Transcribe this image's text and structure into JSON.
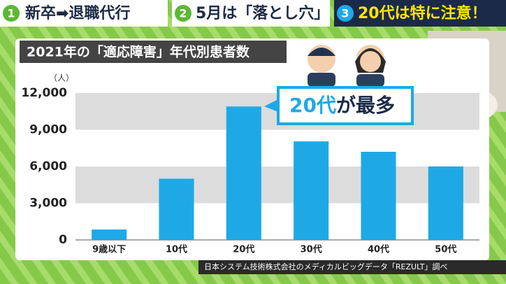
{
  "tabs": [
    {
      "number": "1",
      "label": "新卒➡退職代行"
    },
    {
      "number": "2",
      "label": "5月は「落とし穴」"
    },
    {
      "number": "3",
      "label": "20代は特に注意！"
    }
  ],
  "chart_data": {
    "type": "bar",
    "title": "2021年の「適応障害」年代別患者数",
    "y_label": "（人）",
    "categories": [
      "9歳以下",
      "10代",
      "20代",
      "30代",
      "40代",
      "50代"
    ],
    "values": [
      850,
      5000,
      10900,
      8050,
      7200,
      6000
    ],
    "color": "#1ea9e6",
    "ylim": [
      0,
      12000
    ],
    "yticks": [
      0,
      {
        "value": 3000,
        "label": "3,000"
      },
      {
        "value": 6000,
        "label": "6,000"
      },
      {
        "value": 9000,
        "label": "9,000"
      },
      {
        "value": 12000,
        "label": "12,000"
      }
    ],
    "banded": true,
    "annotation": {
      "highlight": "20代",
      "text": "が最多"
    },
    "source": "日本システム技術株式会社のメディカルビッグデータ「REZULT」調べ"
  }
}
